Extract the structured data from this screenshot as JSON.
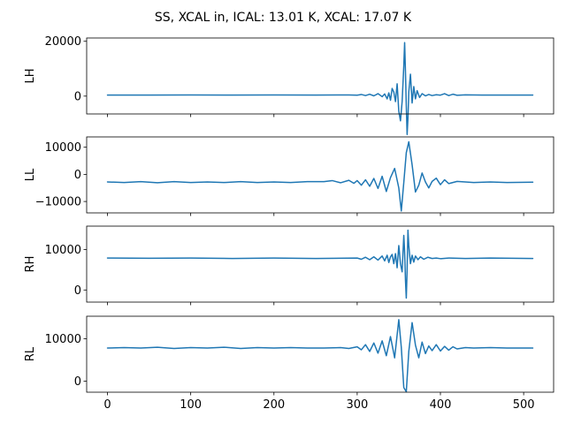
{
  "figure": {
    "title": "SS, XCAL in, ICAL: 13.01 K, XCAL: 17.07 K"
  },
  "chart_data": [
    {
      "type": "line",
      "ylabel": "LH",
      "xlim": [
        -25,
        536
      ],
      "ylim": [
        -6500,
        21200
      ],
      "xticks": [
        0,
        100,
        200,
        300,
        400,
        500
      ],
      "xtick_labels": [
        "0",
        "100",
        "200",
        "300",
        "400",
        "500"
      ],
      "yticks": [
        0,
        20000
      ],
      "ytick_labels": [
        "0",
        "20000"
      ],
      "show_xtick_labels": false,
      "color": "#1f77b4",
      "series": [
        {
          "x": [
            0,
            50,
            100,
            150,
            200,
            250,
            290,
            300,
            305,
            310,
            315,
            320,
            325,
            330,
            333,
            336,
            338,
            340,
            342,
            344,
            346,
            348,
            350,
            352,
            354,
            356,
            357,
            358,
            359,
            360,
            361,
            362,
            364,
            366,
            368,
            370,
            372,
            375,
            378,
            382,
            386,
            390,
            395,
            400,
            405,
            410,
            415,
            420,
            430,
            450,
            480,
            511
          ],
          "values": [
            400,
            400,
            420,
            380,
            420,
            380,
            430,
            350,
            600,
            200,
            700,
            100,
            900,
            -200,
            800,
            -1000,
            1200,
            -1500,
            2800,
            1500,
            -2000,
            4500,
            -5500,
            -9000,
            -2000,
            11000,
            19500,
            9000,
            -3500,
            -14000,
            -8000,
            1500,
            8000,
            -2500,
            3500,
            -1000,
            2000,
            -500,
            900,
            100,
            600,
            200,
            500,
            350,
            900,
            200,
            700,
            300,
            450,
            400,
            400,
            380
          ]
        }
      ]
    },
    {
      "type": "line",
      "ylabel": "LL",
      "xlim": [
        -25,
        536
      ],
      "ylim": [
        -14200,
        13800
      ],
      "xticks": [
        0,
        100,
        200,
        300,
        400,
        500
      ],
      "xtick_labels": [
        "0",
        "100",
        "200",
        "300",
        "400",
        "500"
      ],
      "yticks": [
        -10000,
        0,
        10000
      ],
      "ytick_labels": [
        "−10000",
        "0",
        "10000"
      ],
      "show_xtick_labels": false,
      "color": "#1f77b4",
      "series": [
        {
          "x": [
            0,
            20,
            40,
            60,
            80,
            100,
            120,
            140,
            160,
            180,
            200,
            220,
            240,
            260,
            270,
            280,
            290,
            296,
            300,
            305,
            310,
            315,
            320,
            325,
            330,
            335,
            340,
            345,
            350,
            353,
            356,
            359,
            362,
            366,
            370,
            374,
            378,
            382,
            386,
            390,
            395,
            400,
            405,
            410,
            420,
            440,
            460,
            480,
            511
          ],
          "values": [
            -2800,
            -3000,
            -2700,
            -3100,
            -2700,
            -3000,
            -2800,
            -3000,
            -2700,
            -3000,
            -2800,
            -3000,
            -2700,
            -2700,
            -2300,
            -3100,
            -2200,
            -3300,
            -2300,
            -4000,
            -2000,
            -4400,
            -1500,
            -5200,
            -700,
            -6300,
            -1200,
            2200,
            -5000,
            -13500,
            -3000,
            8000,
            12000,
            3500,
            -6500,
            -4000,
            500,
            -2800,
            -5000,
            -2600,
            -1400,
            -3800,
            -2000,
            -3400,
            -2600,
            -3000,
            -2800,
            -3000,
            -2900
          ]
        }
      ]
    },
    {
      "type": "line",
      "ylabel": "RH",
      "xlim": [
        -25,
        536
      ],
      "ylim": [
        -3000,
        15800
      ],
      "xticks": [
        0,
        100,
        200,
        300,
        400,
        500
      ],
      "xtick_labels": [
        "0",
        "100",
        "200",
        "300",
        "400",
        "500"
      ],
      "yticks": [
        0,
        10000
      ],
      "ytick_labels": [
        "0",
        "10000"
      ],
      "show_xtick_labels": false,
      "color": "#1f77b4",
      "series": [
        {
          "x": [
            0,
            50,
            100,
            150,
            200,
            250,
            300,
            305,
            310,
            315,
            320,
            325,
            330,
            333,
            336,
            338,
            340,
            342,
            344,
            346,
            348,
            350,
            352,
            354,
            356,
            357,
            358,
            359,
            360,
            361,
            362,
            364,
            366,
            368,
            370,
            373,
            376,
            380,
            385,
            390,
            395,
            400,
            410,
            430,
            460,
            511
          ],
          "values": [
            7900,
            7850,
            7900,
            7800,
            7900,
            7800,
            7900,
            7600,
            8100,
            7500,
            8200,
            7400,
            8400,
            7200,
            8600,
            6800,
            8200,
            8800,
            6500,
            9000,
            5500,
            11000,
            6500,
            4500,
            13500,
            9500,
            2500,
            -2000,
            5000,
            14800,
            11000,
            6500,
            8600,
            6900,
            8400,
            7500,
            8200,
            7600,
            8100,
            7800,
            7900,
            7750,
            7900,
            7800,
            7900,
            7800
          ]
        }
      ]
    },
    {
      "type": "line",
      "ylabel": "RL",
      "xlim": [
        -25,
        536
      ],
      "ylim": [
        -2600,
        15300
      ],
      "xticks": [
        0,
        100,
        200,
        300,
        400,
        500
      ],
      "xtick_labels": [
        "0",
        "100",
        "200",
        "300",
        "400",
        "500"
      ],
      "yticks": [
        0,
        10000
      ],
      "ytick_labels": [
        "0",
        "10000"
      ],
      "show_xtick_labels": true,
      "color": "#1f77b4",
      "series": [
        {
          "x": [
            0,
            20,
            40,
            60,
            80,
            100,
            120,
            140,
            160,
            180,
            200,
            220,
            240,
            260,
            280,
            290,
            300,
            305,
            310,
            315,
            320,
            325,
            330,
            335,
            340,
            345,
            350,
            353,
            356,
            359,
            362,
            366,
            370,
            374,
            378,
            382,
            386,
            390,
            395,
            400,
            405,
            410,
            415,
            420,
            430,
            440,
            460,
            480,
            511
          ],
          "values": [
            7800,
            7900,
            7800,
            8000,
            7700,
            7900,
            7800,
            8000,
            7700,
            7900,
            7800,
            7900,
            7800,
            7800,
            7900,
            7700,
            8100,
            7400,
            8600,
            7000,
            9000,
            6600,
            9500,
            6000,
            10500,
            5500,
            14500,
            8000,
            -1500,
            -2500,
            7000,
            13800,
            8500,
            5500,
            9200,
            6500,
            8300,
            7200,
            8600,
            7100,
            8200,
            7300,
            8100,
            7600,
            7900,
            7800,
            7900,
            7800,
            7800
          ]
        }
      ]
    }
  ]
}
